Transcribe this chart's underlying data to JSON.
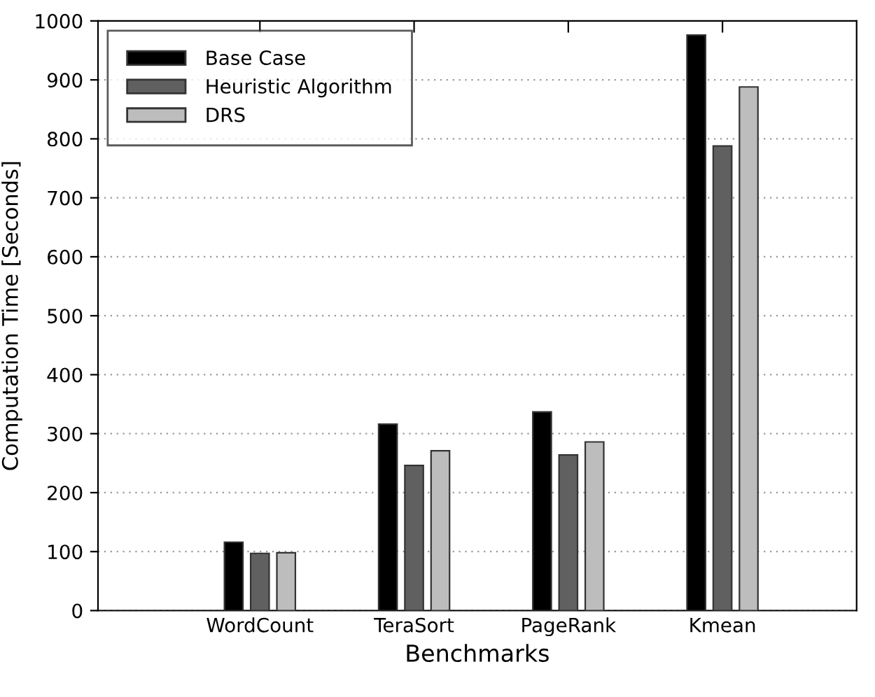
{
  "chart_data": {
    "type": "bar",
    "xlabel": "Benchmarks",
    "ylabel": "Computation Time [Seconds]",
    "categories": [
      "WordCount",
      "TeraSort",
      "PageRank",
      "Kmean"
    ],
    "series": [
      {
        "name": "Base Case",
        "color": "#000000",
        "values": [
          116,
          316,
          337,
          976
        ]
      },
      {
        "name": "Heuristic Algorithm",
        "color": "#606060",
        "values": [
          97,
          246,
          264,
          788
        ]
      },
      {
        "name": "DRS",
        "color": "#bdbdbd",
        "values": [
          98,
          271,
          286,
          888
        ]
      }
    ],
    "ylim": [
      0,
      1000
    ],
    "yticks": [
      0,
      100,
      200,
      300,
      400,
      500,
      600,
      700,
      800,
      900,
      1000
    ],
    "grid": "y",
    "legend": "top left"
  }
}
